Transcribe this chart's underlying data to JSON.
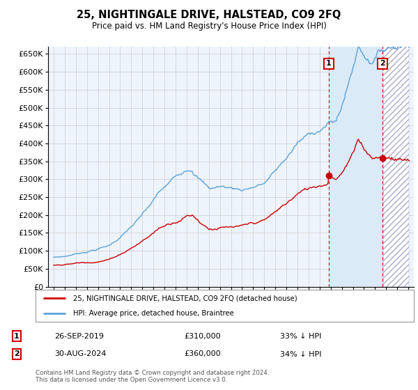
{
  "title": "25, NIGHTINGALE DRIVE, HALSTEAD, CO9 2FQ",
  "subtitle": "Price paid vs. HM Land Registry's House Price Index (HPI)",
  "ylim": [
    0,
    670000
  ],
  "yticks": [
    0,
    50000,
    100000,
    150000,
    200000,
    250000,
    300000,
    350000,
    400000,
    450000,
    500000,
    550000,
    600000,
    650000
  ],
  "xlim_start": 1994.5,
  "xlim_end": 2027.5,
  "sale1_date": 2019.83,
  "sale1_price": 310000,
  "sale2_date": 2024.67,
  "sale2_price": 360000,
  "hpi_color": "#5ba3d9",
  "hpi_fill_color": "#daeaf7",
  "sale_color": "#cc0000",
  "vline_color": "#cc0000",
  "grid_color": "#cccccc",
  "bg_color": "#ffffff",
  "plot_bg_color": "#eef4fc",
  "legend_entry1": "25, NIGHTINGALE DRIVE, HALSTEAD, CO9 2FQ (detached house)",
  "legend_entry2": "HPI: Average price, detached house, Braintree",
  "table_row1": [
    "1",
    "26-SEP-2019",
    "£310,000",
    "33% ↓ HPI"
  ],
  "table_row2": [
    "2",
    "30-AUG-2024",
    "£360,000",
    "34% ↓ HPI"
  ],
  "footnote": "Contains HM Land Registry data © Crown copyright and database right 2024.\nThis data is licensed under the Open Government Licence v3.0."
}
